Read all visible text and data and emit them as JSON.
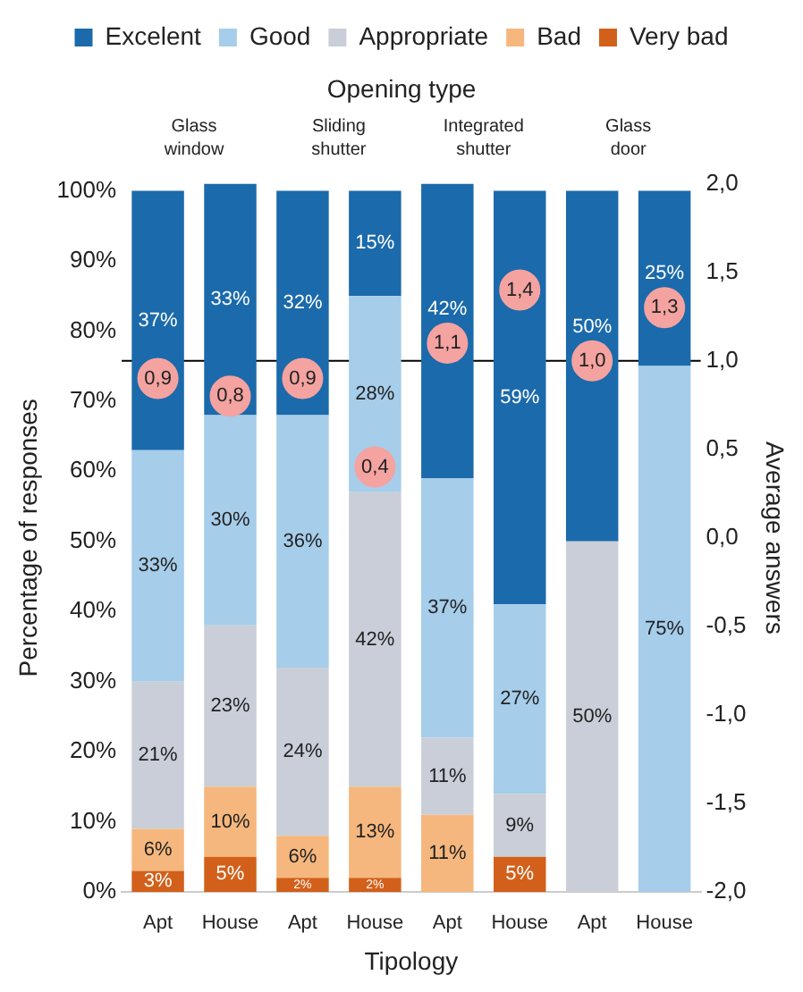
{
  "chart_data": {
    "type": "bar",
    "stacked": true,
    "title": "Opening type",
    "xlabel": "Tipology",
    "ylabel": "Percentage of responses",
    "y2label": "Average answers",
    "annotations": [
      "Glass window",
      "Sliding shutter",
      "Integrated shutter",
      "Glass door"
    ],
    "categories": [
      "Apt",
      "House",
      "Apt",
      "House",
      "Apt",
      "House",
      "Apt",
      "House"
    ],
    "series": [
      {
        "name": "Very bad",
        "color": "#d2601a",
        "values": [
          3,
          5,
          2,
          2,
          0,
          5,
          0,
          0
        ],
        "value_labels": [
          "3%",
          "5%",
          "2%",
          "2%",
          null,
          "5%",
          null,
          null
        ]
      },
      {
        "name": "Bad",
        "color": "#f5b77d",
        "values": [
          6,
          10,
          6,
          13,
          11,
          0,
          0,
          0
        ],
        "value_labels": [
          "6%",
          "10%",
          "6%",
          "13%",
          "11%",
          null,
          null,
          null
        ]
      },
      {
        "name": "Appropriate",
        "color": "#c9ced8",
        "values": [
          21,
          23,
          24,
          42,
          11,
          9,
          50,
          0
        ],
        "value_labels": [
          "21%",
          "23%",
          "24%",
          "42%",
          "11%",
          "9%",
          "50%",
          null
        ]
      },
      {
        "name": "Good",
        "color": "#a6cdea",
        "values": [
          33,
          30,
          36,
          28,
          37,
          27,
          0,
          75
        ],
        "value_labels": [
          "33%",
          "30%",
          "36%",
          "28%",
          "37%",
          "27%",
          null,
          "75%"
        ]
      },
      {
        "name": "Excelent",
        "color": "#1b6aab",
        "values": [
          37,
          33,
          32,
          15,
          42,
          59,
          50,
          25
        ],
        "value_labels": [
          "37%",
          "33%",
          "32%",
          "15%",
          "42%",
          "59%",
          "50%",
          "25%"
        ]
      },
      {
        "type": "scatter",
        "axis": "y2",
        "color": "#f4a3a0",
        "values": [
          0.9,
          0.8,
          0.9,
          0.4,
          1.1,
          1.4,
          1.0,
          1.3
        ],
        "value_labels": [
          "0,9",
          "0,8",
          "0,9",
          "0,4",
          "1,1",
          "1,4",
          "1,0",
          "1,3"
        ]
      }
    ],
    "marker": "circle",
    "ylim": [
      0,
      101
    ],
    "yticks": [
      {
        "value": 0,
        "label": "0%"
      },
      {
        "value": 10,
        "label": "10%"
      },
      {
        "value": 20,
        "label": "20%"
      },
      {
        "value": 30,
        "label": "30%"
      },
      {
        "value": 40,
        "label": "40%"
      },
      {
        "value": 50,
        "label": "50%"
      },
      {
        "value": 60,
        "label": "60%"
      },
      {
        "value": 70,
        "label": "70%"
      },
      {
        "value": 80,
        "label": "80%"
      },
      {
        "value": 90,
        "label": "90%"
      },
      {
        "value": 100,
        "label": "100%"
      }
    ],
    "y2lim": [
      -2,
      2
    ],
    "y2ticks": [
      {
        "value": -2,
        "label": "-2,0"
      },
      {
        "value": -1.5,
        "label": "-1,5"
      },
      {
        "value": -1,
        "label": "-1,0"
      },
      {
        "value": -0.5,
        "label": "-0,5"
      },
      {
        "value": 0,
        "label": "0,0"
      },
      {
        "value": 0.5,
        "label": "0,5"
      },
      {
        "value": 1,
        "label": "1,0"
      },
      {
        "value": 1.5,
        "label": "1,5"
      },
      {
        "value": 2,
        "label": "2,0"
      }
    ],
    "ref_lines": [
      {
        "axis": "y2",
        "value": 1,
        "color": "#000000"
      }
    ],
    "legend": "top",
    "grid": false
  }
}
